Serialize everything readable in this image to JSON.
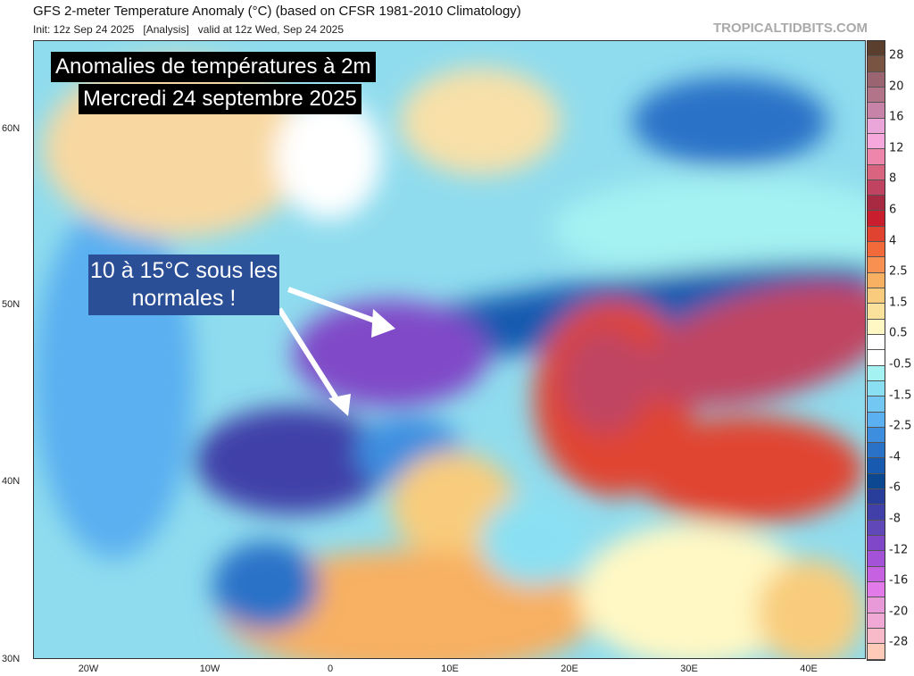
{
  "header": {
    "title": "GFS 2-meter Temperature Anomaly (°C) (based on CFSR 1981-2010 Climatology)",
    "subtitle": "Init: 12z Sep 24 2025   [Analysis]   valid at 12z Wed, Sep 24 2025",
    "brand": "TROPICALTIDBITS.COM"
  },
  "overlay": {
    "line1": "Anomalies de températures à 2m",
    "line2": "Mercredi 24 septembre 2025",
    "annotation": "10 à 15°C sous les normales !"
  },
  "axes": {
    "lat_labels": [
      "60N",
      "50N",
      "40N",
      "30N"
    ],
    "lon_labels": [
      "20W",
      "10W",
      "0",
      "10E",
      "20E",
      "30E",
      "40E"
    ]
  },
  "colorbar": {
    "labels": [
      "28",
      "20",
      "16",
      "12",
      "8",
      "6",
      "4",
      "2.5",
      "1.5",
      "0.5",
      "-0.5",
      "-1.5",
      "-2.5",
      "-4",
      "-6",
      "-8",
      "-12",
      "-16",
      "-20",
      "-28"
    ],
    "colors": [
      "#5a3e2e",
      "#7a5442",
      "#9a6470",
      "#b27488",
      "#c884a8",
      "#eaa6d8",
      "#f6a8dc",
      "#ee86ac",
      "#d86480",
      "#c04462",
      "#a82a42",
      "#c81e2e",
      "#e04430",
      "#f26a3a",
      "#f89052",
      "#f8b062",
      "#f8cc7c",
      "#fae29c",
      "#fff8c4",
      "#ffffff",
      "#ffffff",
      "#a4f2f2",
      "#8ae0f2",
      "#72c8f2",
      "#5ab0f0",
      "#3e8ee0",
      "#2a72c8",
      "#185ab0",
      "#0c4892",
      "#283e9a",
      "#4040a8",
      "#6048b8",
      "#8048c8",
      "#a452d8",
      "#c662e2",
      "#e27aea",
      "#e89ad8",
      "#f0a8d4",
      "#f8bac8",
      "#ffcab8"
    ]
  }
}
